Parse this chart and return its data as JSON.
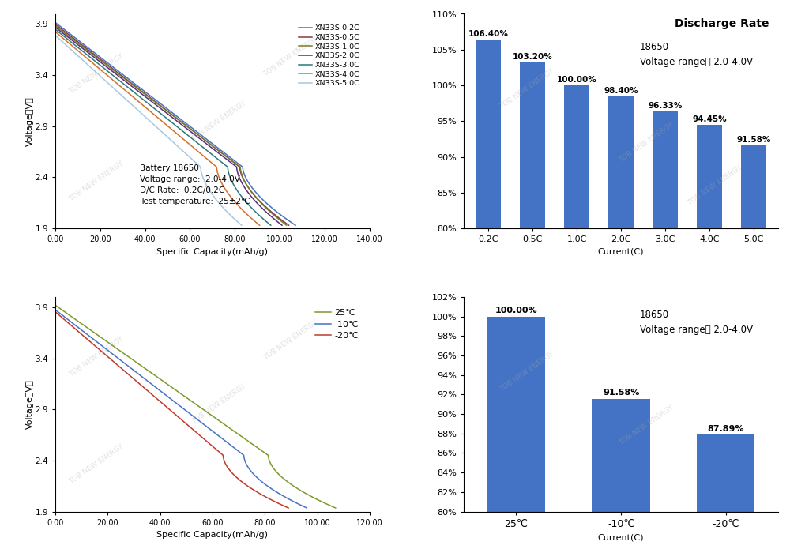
{
  "top_left": {
    "xlabel": "Specific Capacity(mAh/g)",
    "ylabel": "Voltage（V）",
    "xlim": [
      0,
      140
    ],
    "ylim": [
      1.9,
      4.0
    ],
    "xticks": [
      0,
      20,
      40,
      60,
      80,
      100,
      120,
      140
    ],
    "xtick_labels": [
      "0.00",
      "20.00",
      "40.00",
      "60.00",
      "80.00",
      "100.00",
      "120.00",
      "140.00"
    ],
    "yticks": [
      1.9,
      2.4,
      2.9,
      3.4,
      3.9
    ],
    "annotation": "Battery 18650\nVoltage range:  2.0-4.0V\nD/C Rate:  0.2C/0.2C\nTest temperature:  25±2℃",
    "curves": [
      {
        "label": "XN33S-0.2C",
        "color": "#4472C4",
        "x_end": 107,
        "start_v": 3.915,
        "drop_start": 0.78
      },
      {
        "label": "XN33S-0.5C",
        "color": "#843C3C",
        "x_end": 104,
        "start_v": 3.898,
        "drop_start": 0.79
      },
      {
        "label": "XN33S-1.0C",
        "color": "#7A7A2A",
        "x_end": 103,
        "start_v": 3.883,
        "drop_start": 0.8
      },
      {
        "label": "XN33S-2.0C",
        "color": "#5A2C7A",
        "x_end": 101,
        "start_v": 3.868,
        "drop_start": 0.8
      },
      {
        "label": "XN33S-3.0C",
        "color": "#2A7A7A",
        "x_end": 96,
        "start_v": 3.848,
        "drop_start": 0.8
      },
      {
        "label": "XN33S-4.0C",
        "color": "#D4702A",
        "x_end": 91,
        "start_v": 3.825,
        "drop_start": 0.79
      },
      {
        "label": "XN33S-5.0C",
        "color": "#A8C8E0",
        "x_end": 83,
        "start_v": 3.79,
        "drop_start": 0.78
      }
    ]
  },
  "top_right": {
    "title": "Discharge Rate",
    "xlabel": "Current(C)",
    "categories": [
      "0.2C",
      "0.5C",
      "1.0C",
      "2.0C",
      "3.0C",
      "4.0C",
      "5.0C"
    ],
    "values": [
      106.4,
      103.2,
      100.0,
      98.4,
      96.33,
      94.45,
      91.58
    ],
    "bar_color": "#4472C4",
    "ylim": [
      80,
      110
    ],
    "yticks": [
      80,
      85,
      90,
      95,
      100,
      105,
      110
    ],
    "ytick_labels": [
      "80%",
      "85%",
      "90%",
      "95%",
      "100%",
      "105%",
      "110%"
    ],
    "annotation": "18650\nVoltage range： 2.0-4.0V"
  },
  "bottom_left": {
    "xlabel": "Specific Capacity(mAh/g)",
    "ylabel": "Voltage（V）",
    "xlim": [
      0,
      120
    ],
    "ylim": [
      1.9,
      4.0
    ],
    "xticks": [
      0,
      20,
      40,
      60,
      80,
      100,
      120
    ],
    "xtick_labels": [
      "0.00",
      "20.00",
      "40.00",
      "60.00",
      "80.00",
      "100.00",
      "120.00"
    ],
    "yticks": [
      1.9,
      2.4,
      2.9,
      3.4,
      3.9
    ],
    "curves": [
      {
        "label": "25℃",
        "color": "#7A9A2A",
        "x_end": 107,
        "start_v": 3.92,
        "drop_start": 0.76
      },
      {
        "label": "-10℃",
        "color": "#4472C4",
        "x_end": 96,
        "start_v": 3.875,
        "drop_start": 0.75
      },
      {
        "label": "-20℃",
        "color": "#C0392B",
        "x_end": 89,
        "start_v": 3.855,
        "drop_start": 0.72
      }
    ]
  },
  "bottom_right": {
    "xlabel": "Current(C)",
    "categories": [
      "25℃",
      "-10℃",
      "-20℃"
    ],
    "values": [
      100.0,
      91.58,
      87.89
    ],
    "bar_color": "#4472C4",
    "ylim": [
      80,
      102
    ],
    "yticks": [
      80,
      82,
      84,
      86,
      88,
      90,
      92,
      94,
      96,
      98,
      100,
      102
    ],
    "ytick_labels": [
      "80%",
      "82%",
      "84%",
      "86%",
      "88%",
      "90%",
      "92%",
      "94%",
      "96%",
      "98%",
      "100%",
      "102%"
    ],
    "annotation": "18650\nVoltage range： 2.0-4.0V"
  },
  "watermark": "TOB NEW ENERGY",
  "bg": "#FFFFFF"
}
